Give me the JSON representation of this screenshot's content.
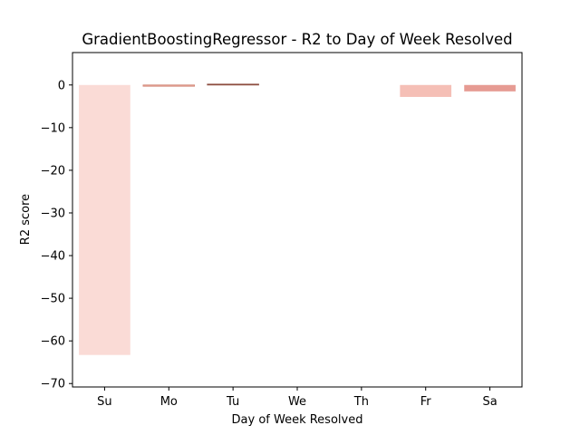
{
  "chart_data": {
    "type": "bar",
    "title": "GradientBoostingRegressor - R2 to Day of Week Resolved",
    "xlabel": "Day of Week Resolved",
    "ylabel": "R2 score",
    "categories": [
      "Su",
      "Mo",
      "Tu",
      "We",
      "Th",
      "Fr",
      "Sa"
    ],
    "values": [
      -63.3,
      -0.3,
      0.2,
      0.0,
      0.0,
      -2.8,
      -1.5
    ],
    "ylim": [
      -70.8,
      7.6
    ],
    "yticks": [
      0,
      -10,
      -20,
      -30,
      -40,
      -50,
      -60,
      -70
    ],
    "ytick_labels": [
      "0",
      "−10",
      "−20",
      "−30",
      "−40",
      "−50",
      "−60",
      "−70"
    ],
    "grid": false,
    "colors": {
      "Su": "#fadbd6",
      "Mo": "#e9a598",
      "Tu": "#9f5d50",
      "We": "#ffffff",
      "Th": "#ffffff",
      "Fr": "#f5bfb6",
      "Sa": "#e69b93",
      "Mo_edge": "#d08474",
      "Tu_edge": "#8a4a3d"
    }
  }
}
